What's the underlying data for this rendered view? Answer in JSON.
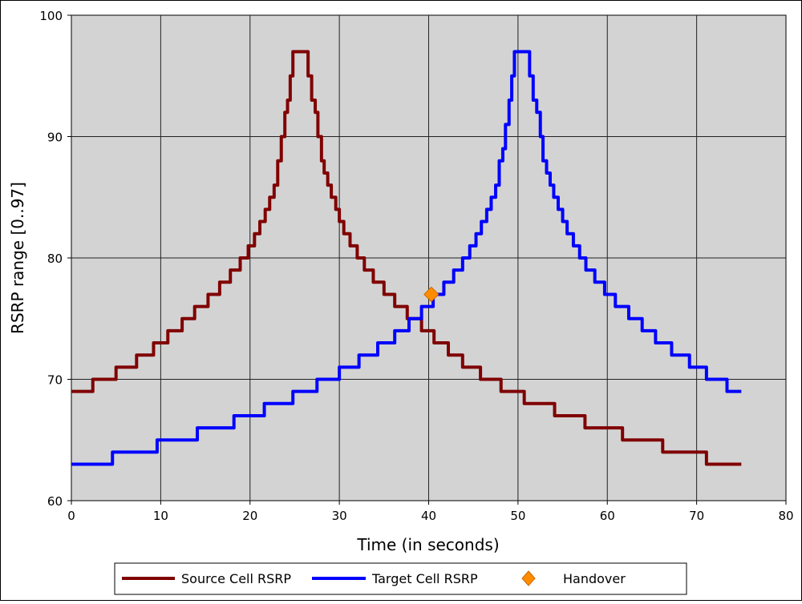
{
  "chart_data": {
    "type": "line",
    "xlabel": "Time (in seconds)",
    "ylabel": "RSRP range [0..97]",
    "xlim": [
      0,
      80
    ],
    "ylim": [
      60,
      100
    ],
    "x_ticks": [
      0,
      10,
      20,
      30,
      40,
      50,
      60,
      70,
      80
    ],
    "y_ticks": [
      60,
      70,
      80,
      90,
      100
    ],
    "grid": true,
    "legend_position": "bottom",
    "background_color": "#d3d3d3",
    "series": [
      {
        "name": "Source Cell RSRP",
        "color": "#800000",
        "style": "step",
        "points": [
          [
            0,
            69
          ],
          [
            2.4,
            70
          ],
          [
            5,
            71
          ],
          [
            7.3,
            72
          ],
          [
            9.2,
            73
          ],
          [
            10.8,
            74
          ],
          [
            12.4,
            75
          ],
          [
            13.8,
            76
          ],
          [
            15.3,
            77
          ],
          [
            16.6,
            78
          ],
          [
            17.8,
            79
          ],
          [
            18.9,
            80
          ],
          [
            19.8,
            81
          ],
          [
            20.5,
            82
          ],
          [
            21.1,
            83
          ],
          [
            21.7,
            84
          ],
          [
            22.2,
            85
          ],
          [
            22.7,
            86
          ],
          [
            23.1,
            88
          ],
          [
            23.5,
            90
          ],
          [
            23.9,
            92
          ],
          [
            24.2,
            93
          ],
          [
            24.5,
            95
          ],
          [
            24.8,
            97
          ],
          [
            26.5,
            95
          ],
          [
            26.9,
            93
          ],
          [
            27.3,
            92
          ],
          [
            27.6,
            90
          ],
          [
            28.0,
            88
          ],
          [
            28.3,
            87
          ],
          [
            28.7,
            86
          ],
          [
            29.1,
            85
          ],
          [
            29.6,
            84
          ],
          [
            30.0,
            83
          ],
          [
            30.5,
            82
          ],
          [
            31.2,
            81
          ],
          [
            32.0,
            80
          ],
          [
            32.8,
            79
          ],
          [
            33.8,
            78
          ],
          [
            35.0,
            77
          ],
          [
            36.2,
            76
          ],
          [
            37.6,
            75
          ],
          [
            39.2,
            74
          ],
          [
            40.6,
            73
          ],
          [
            42.2,
            72
          ],
          [
            43.8,
            71
          ],
          [
            45.8,
            70
          ],
          [
            48.1,
            69
          ],
          [
            50.7,
            68
          ],
          [
            54.1,
            67
          ],
          [
            57.5,
            66
          ],
          [
            61.7,
            65
          ],
          [
            66.2,
            64
          ],
          [
            71.1,
            63
          ],
          [
            75,
            63
          ]
        ]
      },
      {
        "name": "Target Cell RSRP",
        "color": "#0000ff",
        "style": "step",
        "points": [
          [
            0,
            63
          ],
          [
            4.6,
            64
          ],
          [
            9.6,
            65
          ],
          [
            14.1,
            66
          ],
          [
            18.2,
            67
          ],
          [
            21.6,
            68
          ],
          [
            24.8,
            69
          ],
          [
            27.5,
            70
          ],
          [
            30.0,
            71
          ],
          [
            32.2,
            72
          ],
          [
            34.3,
            73
          ],
          [
            36.2,
            74
          ],
          [
            37.8,
            75
          ],
          [
            39.2,
            76
          ],
          [
            40.5,
            77
          ],
          [
            41.7,
            78
          ],
          [
            42.8,
            79
          ],
          [
            43.8,
            80
          ],
          [
            44.6,
            81
          ],
          [
            45.3,
            82
          ],
          [
            45.9,
            83
          ],
          [
            46.5,
            84
          ],
          [
            47.0,
            85
          ],
          [
            47.5,
            86
          ],
          [
            47.9,
            88
          ],
          [
            48.3,
            89
          ],
          [
            48.6,
            91
          ],
          [
            49.0,
            93
          ],
          [
            49.3,
            95
          ],
          [
            49.6,
            97
          ],
          [
            51.3,
            95
          ],
          [
            51.7,
            93
          ],
          [
            52.1,
            92
          ],
          [
            52.5,
            90
          ],
          [
            52.8,
            88
          ],
          [
            53.2,
            87
          ],
          [
            53.6,
            86
          ],
          [
            54.0,
            85
          ],
          [
            54.5,
            84
          ],
          [
            55.0,
            83
          ],
          [
            55.5,
            82
          ],
          [
            56.2,
            81
          ],
          [
            56.9,
            80
          ],
          [
            57.6,
            79
          ],
          [
            58.6,
            78
          ],
          [
            59.7,
            77
          ],
          [
            60.9,
            76
          ],
          [
            62.4,
            75
          ],
          [
            63.9,
            74
          ],
          [
            65.4,
            73
          ],
          [
            67.2,
            72
          ],
          [
            69.2,
            71
          ],
          [
            71.1,
            70
          ],
          [
            73.4,
            69
          ],
          [
            75,
            69
          ]
        ]
      },
      {
        "name": "Handover",
        "color": "#ff8c00",
        "style": "marker",
        "marker": "diamond",
        "points": [
          [
            40.3,
            77
          ]
        ]
      }
    ]
  }
}
